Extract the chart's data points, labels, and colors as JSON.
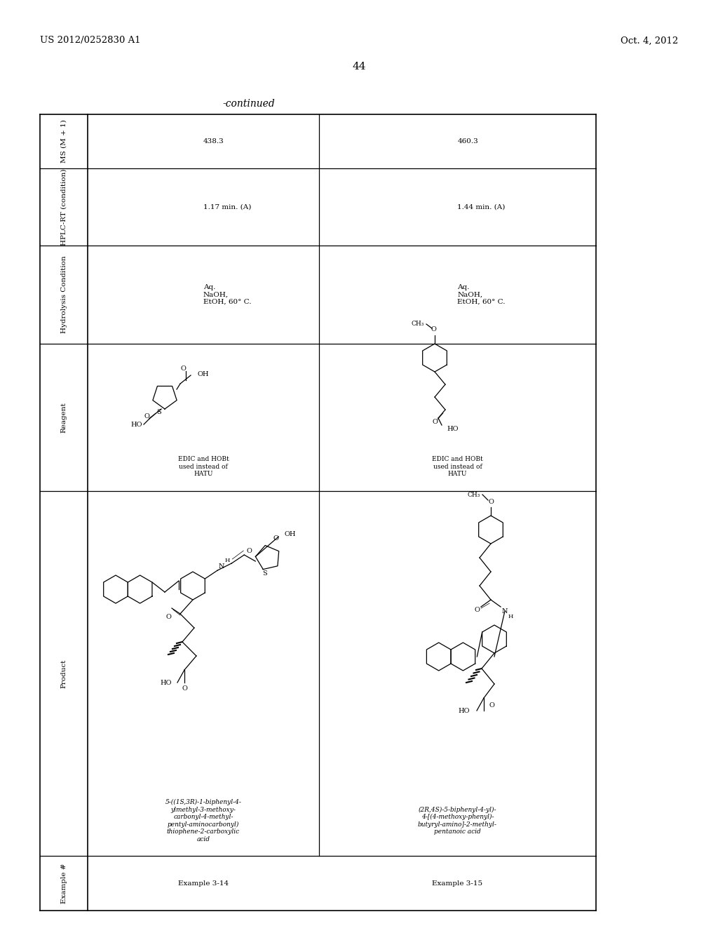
{
  "page_header_left": "US 2012/0252830 A1",
  "page_header_right": "Oct. 4, 2012",
  "page_number": "44",
  "continued_label": "-continued",
  "col_headers": [
    "Example #",
    "Product",
    "Reagent",
    "Hydrolysis Condition",
    "HPLC-RT (condition)",
    "MS (M + 1)"
  ],
  "example_314": "Example 3-14",
  "example_315": "Example 3-15",
  "product_name_314": "5-((1S,3R)-1-biphenyl-4-\nylmethyl-3-methoxy-\ncarbonyl-4-methyl-\npentyl-aminocarbonyl)\nthiophene-2-carboxylic\nacid",
  "product_name_315": "(2R,4S)-5-biphenyl-4-yl)-\n4-[(4-methoxy-phenyl)-\nbutyryl-amino]-2-methyl-\npentanoic acid",
  "reagent_314": "EDIC and HOBt\nused instead of\nHATU",
  "reagent_315": "EDIC and HOBt\nused instead of\nHATU",
  "hydrolysis_314": "Aq.\nNaOH,\nEtOH, 60° C.",
  "hydrolysis_315": "Aq.\nNaOH,\nEtOH, 60° C.",
  "hplc_314": "1.17 min. (A)",
  "hplc_315": "1.44 min. (A)",
  "ms_314": "438.3",
  "ms_315": "460.3"
}
